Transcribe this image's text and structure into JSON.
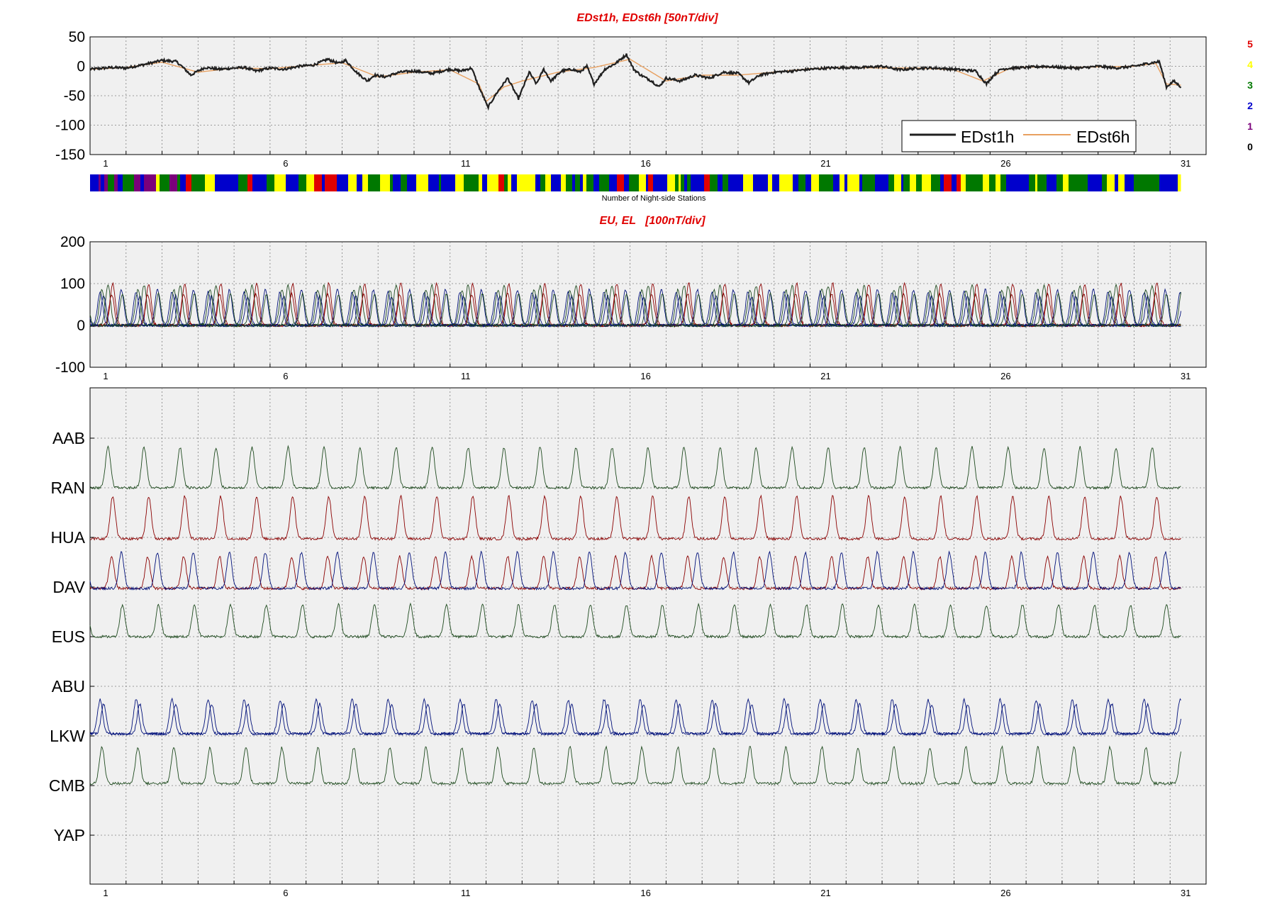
{
  "colors": {
    "black": "#202020",
    "orange": "#e8a060",
    "dark_green": "#1e4a1e",
    "dark_red": "#8b0000",
    "dark_blue": "#00107a",
    "grid": "#7f7f7f",
    "title": "#e00000",
    "panel_bg": "#f0f0f0",
    "count_colors": [
      "#000000",
      "#7b007b",
      "#0000cc",
      "#007800",
      "#ffff00",
      "#e00000"
    ]
  },
  "chart_data": [
    {
      "id": "edst",
      "type": "line",
      "title": "EDst1h, EDst6h [50nT/div]",
      "ylim": [
        -150,
        50
      ],
      "yticks": [
        50,
        0,
        -50,
        -100,
        -150
      ],
      "xlim": [
        0,
        31
      ],
      "xticks": [
        1,
        6,
        11,
        16,
        21,
        26,
        31
      ],
      "grid": true,
      "legend_position": "bottom-right",
      "series": [
        {
          "name": "EDst1h",
          "color": "black",
          "x": [
            0,
            0.6,
            1.0,
            1.5,
            2.0,
            2.4,
            2.6,
            2.8,
            3.0,
            3.2,
            3.6,
            4.0,
            4.3,
            4.6,
            5.0,
            5.4,
            5.8,
            6.2,
            6.6,
            6.9,
            7.1,
            7.4,
            7.7,
            7.9,
            8.2,
            8.6,
            9.0,
            9.5,
            10.0,
            10.3,
            10.6,
            10.8,
            10.95,
            11.05,
            11.3,
            11.6,
            11.9,
            12.2,
            12.4,
            12.6,
            12.8,
            13.1,
            13.4,
            13.6,
            13.8,
            14.0,
            14.3,
            14.6,
            14.9,
            15.1,
            15.3,
            15.6,
            15.8,
            16.0,
            16.4,
            16.8,
            17.2,
            17.6,
            18.0,
            18.3,
            18.6,
            19.0,
            19.5,
            20.0,
            20.5,
            21.0,
            21.5,
            22.0,
            22.5,
            23.0,
            23.5,
            24.0,
            24.6,
            24.9,
            25.1,
            25.3,
            25.6,
            26.0,
            26.5,
            27.0,
            27.5,
            28.0,
            28.5,
            29.0,
            29.4,
            29.7,
            29.9,
            30.1,
            30.3
          ],
          "y": [
            -5,
            -2,
            -3,
            3,
            10,
            8,
            -3,
            -15,
            -8,
            -2,
            -5,
            -3,
            -2,
            -8,
            -3,
            -5,
            0,
            2,
            12,
            5,
            10,
            -10,
            -25,
            -15,
            -18,
            -10,
            -8,
            -12,
            -5,
            -8,
            -3,
            -35,
            -55,
            -70,
            -45,
            -20,
            -55,
            -10,
            -30,
            -5,
            -25,
            -8,
            -5,
            -10,
            0,
            -30,
            -5,
            5,
            20,
            -5,
            -15,
            -25,
            -35,
            -20,
            -25,
            -15,
            -20,
            -10,
            -12,
            -28,
            -15,
            -10,
            -8,
            -5,
            -3,
            -2,
            -2,
            0,
            -6,
            -3,
            -3,
            -5,
            -8,
            -30,
            -15,
            -5,
            -3,
            -2,
            0,
            -2,
            -3,
            0,
            -3,
            0,
            5,
            8,
            -35,
            -25,
            -35
          ]
        },
        {
          "name": "EDst6h",
          "color": "orange",
          "x": [
            0,
            1.0,
            2.0,
            3.0,
            4.0,
            5.0,
            6.0,
            7.0,
            8.0,
            9.0,
            10.0,
            10.8,
            11.0,
            11.5,
            12.0,
            13.0,
            14.0,
            15.0,
            16.0,
            17.0,
            18.0,
            19.0,
            20.0,
            21.0,
            22.0,
            23.0,
            24.0,
            24.8,
            25.5,
            26.0,
            27.0,
            28.0,
            29.0,
            29.6,
            29.9,
            30.3
          ],
          "y": [
            -5,
            -2,
            7,
            -10,
            -3,
            -4,
            1,
            6,
            -18,
            -10,
            -6,
            -30,
            -60,
            -35,
            -25,
            -10,
            -2,
            12,
            -25,
            -15,
            -15,
            -10,
            -4,
            -2,
            -3,
            -3,
            -6,
            -25,
            -5,
            -1,
            -2,
            -1,
            0,
            5,
            -30,
            -32
          ]
        }
      ]
    },
    {
      "id": "night_stations",
      "type": "heatmap",
      "title": "Number of Night-side Stations",
      "legend_levels": [
        "5",
        "4",
        "3",
        "2",
        "1",
        "0"
      ],
      "xlim": [
        0,
        31
      ]
    },
    {
      "id": "eu_el",
      "type": "line",
      "title": "EU, EL   [100nT/div]",
      "ylim": [
        -100,
        200
      ],
      "yticks": [
        200,
        100,
        0,
        -100
      ],
      "xlim": [
        0,
        31
      ],
      "xticks": [
        1,
        6,
        11,
        16,
        21,
        26,
        31
      ],
      "grid": true,
      "stations": [
        {
          "name": "AAB",
          "color": "dark_green",
          "phase": 0.0,
          "amp": 95
        },
        {
          "name": "RAN",
          "color": "dark_red",
          "phase": 0.13,
          "amp": 100
        },
        {
          "name": "HUA",
          "color": "dark_red",
          "phase": 0.1,
          "amp": 75
        },
        {
          "name": "DAV",
          "color": "dark_blue",
          "phase": 0.37,
          "amp": 85
        },
        {
          "name": "EUS",
          "color": "dark_green",
          "phase": 0.4,
          "amp": 75
        },
        {
          "name": "ABU",
          "color": "dark_blue",
          "phase": 0.88,
          "amp": 70
        },
        {
          "name": "LKW",
          "color": "dark_blue",
          "phase": 0.78,
          "amp": 80
        },
        {
          "name": "CMB",
          "color": "dark_green",
          "phase": 0.83,
          "amp": 85
        }
      ]
    },
    {
      "id": "stackplot",
      "type": "line",
      "xlim": [
        0,
        31
      ],
      "xticks": [
        1,
        6,
        11,
        16,
        21,
        26,
        31
      ],
      "grid": true,
      "stations": [
        "AAB",
        "RAN",
        "HUA",
        "DAV",
        "EUS",
        "ABU",
        "LKW",
        "CMB",
        "YAP"
      ]
    }
  ]
}
